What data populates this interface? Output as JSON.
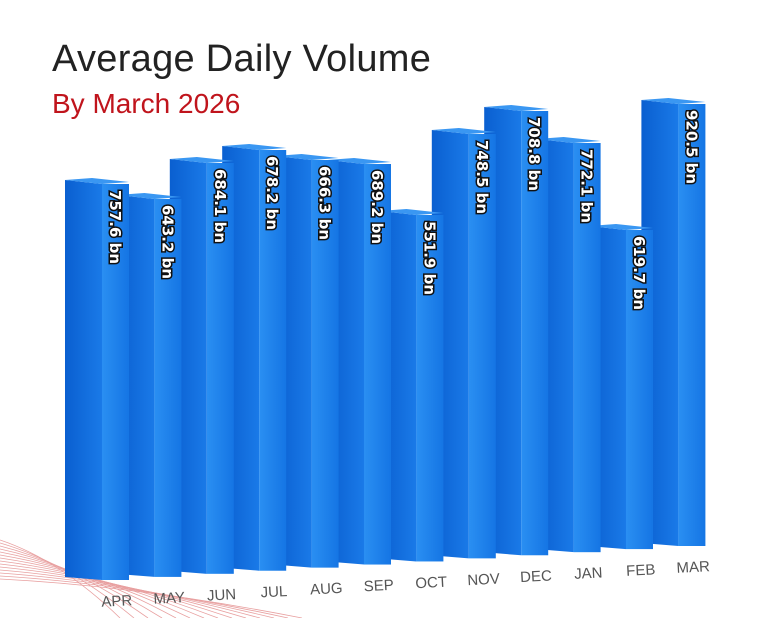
{
  "chart_data": {
    "type": "bar",
    "title": "Average Daily Volume",
    "subtitle": "By March 2026",
    "categories": [
      "APR",
      "MAY",
      "JUN",
      "JUL",
      "AUG",
      "SEP",
      "OCT",
      "NOV",
      "DEC",
      "JAN",
      "FEB",
      "MAR"
    ],
    "values": [
      757.6,
      643.2,
      684.1,
      678.2,
      666.3,
      689.2,
      551.9,
      748.5,
      708.8,
      772.1,
      619.7,
      920.5
    ],
    "data_labels": [
      "757.6 bn",
      "643.2 bn",
      "684.1 bn",
      "678.2 bn",
      "666.3 bn",
      "689.2 bn",
      "551.9 bn",
      "748.5 bn",
      "708.8 bn",
      "772.1 bn",
      "619.7 bn",
      "920.5 bn"
    ],
    "unit": "bn",
    "grid": false,
    "style": "3d",
    "colors": {
      "front": "#2186ee",
      "side": "#0b63d6",
      "top": "#3a97f2",
      "title": "#222222",
      "subtitle": "#c0141c",
      "decor": "#e8a0a0"
    }
  }
}
